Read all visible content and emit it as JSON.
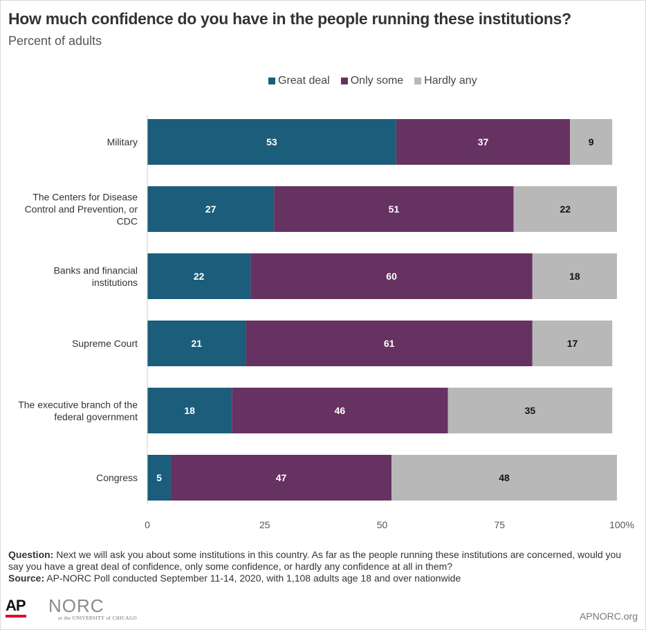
{
  "header": {
    "title": "How much confidence do you have in the people running these institutions?",
    "subtitle": "Percent of adults"
  },
  "chart_data": {
    "type": "bar",
    "orientation": "horizontal",
    "stacked": true,
    "title": "How much confidence do you have in the people running these institutions?",
    "subtitle": "Percent of adults",
    "categories": [
      "Military",
      "The Centers for Disease Control and Prevention, or CDC",
      "Banks and financial institutions",
      "Supreme Court",
      "The executive branch of the federal government",
      "Congress"
    ],
    "category_lines": [
      [
        "Military"
      ],
      [
        "The Centers for Disease",
        "Control and Prevention, or",
        "CDC"
      ],
      [
        "Banks and financial",
        "institutions"
      ],
      [
        "Supreme Court"
      ],
      [
        "The executive branch of the",
        "federal government"
      ],
      [
        "Congress"
      ]
    ],
    "series": [
      {
        "name": "Great deal",
        "color": "#1b5d7a",
        "label_color": "#ffffff",
        "values": [
          53,
          27,
          22,
          21,
          18,
          5
        ]
      },
      {
        "name": "Only some",
        "color": "#663262",
        "label_color": "#ffffff",
        "values": [
          37,
          51,
          60,
          61,
          46,
          47
        ]
      },
      {
        "name": "Hardly any",
        "color": "#b8b8b8",
        "label_color": "#111111",
        "values": [
          9,
          22,
          18,
          17,
          35,
          48
        ]
      }
    ],
    "xlim": [
      0,
      100
    ],
    "xticks": [
      0,
      25,
      50,
      75,
      100
    ],
    "xtick_labels": [
      "0",
      "25",
      "50",
      "75",
      "100%"
    ],
    "legend_position": "top-center",
    "grid": false
  },
  "footer": {
    "question_label": "Question:",
    "question_text": "Next we will ask you about some institutions in this country. As far as the people running these institutions are concerned, would you say you have a great deal of confidence, only some confidence, or hardly any confidence at all in them?",
    "source_label": "Source:",
    "source_text": "AP-NORC Poll conducted September 11-14, 2020, with 1,108 adults age 18 and over nationwide",
    "ap_logo_text": "AP",
    "norc_logo_text": "NORC",
    "norc_sub_text": "at the UNIVERSITY of CHICAGO",
    "site": "APNORC.org"
  }
}
